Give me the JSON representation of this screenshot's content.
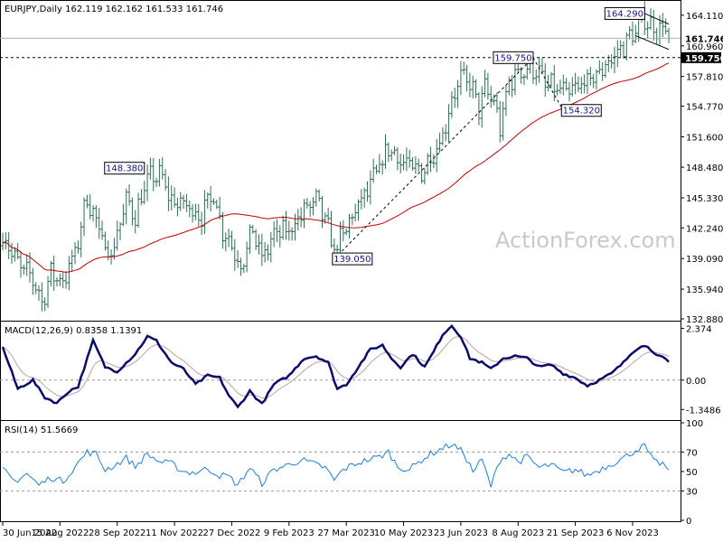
{
  "chart_data": {
    "type": "candlestick-ohlc",
    "watermark": "ActionForex.com",
    "price_panel": {
      "header": "EURJPY,Daily  162.119 162.162 161.533 161.746",
      "ylim": [
        132.88,
        165.4
      ],
      "yticks": [
        132.88,
        135.94,
        139.09,
        142.24,
        145.33,
        148.48,
        151.6,
        154.77,
        157.81,
        160.96,
        164.11
      ],
      "ytick_labels": [
        "132.880",
        "135.940",
        "139.090",
        "142.240",
        "145.330",
        "148.480",
        "151.600",
        "154.770",
        "157.810",
        "160.960",
        "164.110"
      ],
      "current_price": 161.746,
      "current_price_label": "161.746",
      "level_line": 159.75,
      "level_line_label": "159.750",
      "ma_series_color": "#c00000",
      "bar_color": "#2f6f57",
      "annotations": [
        {
          "label": "164.290",
          "x_index": 213,
          "value": 164.29,
          "side": "left"
        },
        {
          "label": "159.750",
          "x_index": 176,
          "value": 159.75,
          "side": "left"
        },
        {
          "label": "154.320",
          "x_index": 186,
          "value": 154.32,
          "side": "right"
        },
        {
          "label": "148.380",
          "x_index": 47,
          "value": 148.38,
          "side": "left"
        },
        {
          "label": "139.050",
          "x_index": 110,
          "value": 139.05,
          "side": "right"
        }
      ],
      "trend_lines": [
        {
          "from": [
            110,
            139.05
          ],
          "to": [
            176,
            159.75
          ],
          "style": "dashed"
        },
        {
          "from": [
            176,
            159.75
          ],
          "to": [
            186,
            154.32
          ],
          "style": "dashed"
        },
        {
          "from": [
            213,
            164.29
          ],
          "to": [
            221,
            163.2
          ],
          "style": "solid"
        },
        {
          "from": [
            210,
            162.0
          ],
          "to": [
            221,
            160.6
          ],
          "style": "solid"
        }
      ],
      "keypoints": [
        [
          0,
          141.5
        ],
        [
          5,
          138.5
        ],
        [
          10,
          137.0
        ],
        [
          13,
          134.6
        ],
        [
          16,
          137.5
        ],
        [
          20,
          136.8
        ],
        [
          24,
          139.5
        ],
        [
          28,
          145.5
        ],
        [
          33,
          141.0
        ],
        [
          36,
          139.5
        ],
        [
          41,
          145.0
        ],
        [
          44,
          143.5
        ],
        [
          48,
          147.2
        ],
        [
          52,
          147.8
        ],
        [
          56,
          145.0
        ],
        [
          61,
          144.5
        ],
        [
          66,
          143.5
        ],
        [
          70,
          145.8
        ],
        [
          73,
          142.0
        ],
        [
          76,
          140.5
        ],
        [
          79,
          138.3
        ],
        [
          83,
          142.0
        ],
        [
          86,
          139.0
        ],
        [
          90,
          141.5
        ],
        [
          95,
          142.0
        ],
        [
          100,
          144.0
        ],
        [
          104,
          145.0
        ],
        [
          107,
          143.0
        ],
        [
          110,
          140.0
        ],
        [
          113,
          141.5
        ],
        [
          117,
          144.0
        ],
        [
          121,
          146.0
        ],
        [
          125,
          148.5
        ],
        [
          128,
          150.5
        ],
        [
          131,
          149.5
        ],
        [
          135,
          148.5
        ],
        [
          139,
          148.0
        ],
        [
          142,
          149.5
        ],
        [
          146,
          151.8
        ],
        [
          149,
          155.5
        ],
        [
          152,
          157.6
        ],
        [
          155,
          157.2
        ],
        [
          158,
          154.5
        ],
        [
          160,
          156.5
        ],
        [
          163,
          155.2
        ],
        [
          165,
          152.5
        ],
        [
          168,
          157.2
        ],
        [
          171,
          158.3
        ],
        [
          174,
          158.5
        ],
        [
          177,
          158.6
        ],
        [
          180,
          157.0
        ],
        [
          184,
          156.5
        ],
        [
          188,
          156.0
        ],
        [
          192,
          157.0
        ],
        [
          196,
          157.6
        ],
        [
          200,
          159.0
        ],
        [
          204,
          160.2
        ],
        [
          207,
          161.5
        ],
        [
          210,
          162.5
        ],
        [
          213,
          163.8
        ],
        [
          216,
          162.8
        ],
        [
          219,
          163.0
        ],
        [
          221,
          161.746
        ]
      ]
    },
    "macd_panel": {
      "header": "MACD(12,26,9) 0.8358 1.1391",
      "ylim": [
        -1.75,
        2.6
      ],
      "yticks": [
        2.374,
        0.0,
        -1.3486
      ],
      "ytick_labels": [
        "2.374",
        "0.00",
        "-1.3486"
      ],
      "macd_color": "#0b0b6b",
      "signal_color": "#c0a0a0",
      "keypoints": [
        [
          0,
          1.5
        ],
        [
          5,
          -0.4
        ],
        [
          10,
          0.0
        ],
        [
          14,
          -0.8
        ],
        [
          18,
          -1.05
        ],
        [
          22,
          -0.5
        ],
        [
          25,
          -0.3
        ],
        [
          30,
          1.8
        ],
        [
          34,
          0.6
        ],
        [
          38,
          0.4
        ],
        [
          44,
          1.2
        ],
        [
          48,
          2.0
        ],
        [
          51,
          1.8
        ],
        [
          56,
          0.8
        ],
        [
          60,
          0.5
        ],
        [
          64,
          -0.2
        ],
        [
          68,
          0.2
        ],
        [
          72,
          0.1
        ],
        [
          75,
          -0.7
        ],
        [
          78,
          -1.25
        ],
        [
          82,
          -0.5
        ],
        [
          86,
          -1.1
        ],
        [
          90,
          -0.2
        ],
        [
          95,
          0.2
        ],
        [
          100,
          1.0
        ],
        [
          104,
          1.1
        ],
        [
          108,
          0.8
        ],
        [
          111,
          -0.4
        ],
        [
          114,
          -0.2
        ],
        [
          118,
          0.6
        ],
        [
          122,
          1.4
        ],
        [
          126,
          1.6
        ],
        [
          129,
          1.0
        ],
        [
          132,
          0.6
        ],
        [
          136,
          1.2
        ],
        [
          140,
          0.6
        ],
        [
          143,
          1.3
        ],
        [
          146,
          2.1
        ],
        [
          149,
          2.5
        ],
        [
          152,
          2.0
        ],
        [
          155,
          1.0
        ],
        [
          159,
          0.8
        ],
        [
          162,
          0.5
        ],
        [
          166,
          1.0
        ],
        [
          170,
          1.1
        ],
        [
          174,
          1.0
        ],
        [
          178,
          0.6
        ],
        [
          182,
          0.7
        ],
        [
          186,
          0.3
        ],
        [
          190,
          0.1
        ],
        [
          194,
          -0.25
        ],
        [
          198,
          0.0
        ],
        [
          202,
          0.3
        ],
        [
          206,
          0.8
        ],
        [
          209,
          1.3
        ],
        [
          212,
          1.6
        ],
        [
          214,
          1.5
        ],
        [
          218,
          1.1
        ],
        [
          221,
          0.8358
        ]
      ]
    },
    "rsi_panel": {
      "header": "RSI(14) 51.5669",
      "ylim": [
        0,
        100
      ],
      "yticks": [
        100,
        70,
        50,
        30,
        0
      ],
      "ytick_labels": [
        "100",
        "70",
        "50",
        "30",
        "0"
      ],
      "dashed_levels": [
        70,
        30
      ],
      "rsi_color": "#1e7fd8",
      "keypoints": [
        [
          0,
          52
        ],
        [
          4,
          40
        ],
        [
          8,
          48
        ],
        [
          12,
          36
        ],
        [
          16,
          44
        ],
        [
          20,
          40
        ],
        [
          24,
          55
        ],
        [
          28,
          70
        ],
        [
          31,
          68
        ],
        [
          34,
          52
        ],
        [
          37,
          56
        ],
        [
          41,
          64
        ],
        [
          44,
          55
        ],
        [
          48,
          68
        ],
        [
          52,
          60
        ],
        [
          56,
          58
        ],
        [
          60,
          50
        ],
        [
          64,
          49
        ],
        [
          68,
          53
        ],
        [
          72,
          46
        ],
        [
          75,
          45
        ],
        [
          78,
          36
        ],
        [
          82,
          54
        ],
        [
          86,
          38
        ],
        [
          90,
          52
        ],
        [
          94,
          56
        ],
        [
          99,
          62
        ],
        [
          103,
          58
        ],
        [
          107,
          54
        ],
        [
          110,
          41
        ],
        [
          113,
          52
        ],
        [
          117,
          58
        ],
        [
          121,
          62
        ],
        [
          125,
          65
        ],
        [
          128,
          70
        ],
        [
          131,
          55
        ],
        [
          135,
          52
        ],
        [
          139,
          62
        ],
        [
          142,
          68
        ],
        [
          146,
          74
        ],
        [
          149,
          78
        ],
        [
          153,
          69
        ],
        [
          156,
          50
        ],
        [
          159,
          62
        ],
        [
          162,
          35
        ],
        [
          165,
          62
        ],
        [
          168,
          68
        ],
        [
          171,
          60
        ],
        [
          174,
          65
        ],
        [
          178,
          54
        ],
        [
          182,
          57
        ],
        [
          186,
          49
        ],
        [
          190,
          52
        ],
        [
          194,
          46
        ],
        [
          198,
          52
        ],
        [
          202,
          58
        ],
        [
          206,
          64
        ],
        [
          210,
          72
        ],
        [
          213,
          76
        ],
        [
          216,
          60
        ],
        [
          219,
          58
        ],
        [
          221,
          51.5669
        ]
      ]
    },
    "x_axis": {
      "bar_count": 222,
      "tick_labels": [
        "30 Jun 2022",
        "15 Aug 2022",
        "28 Sep 2022",
        "11 Nov 2022",
        "27 Dec 2022",
        "9 Feb 2023",
        "27 Mar 2023",
        "10 May 2023",
        "23 Jun 2023",
        "8 Aug 2023",
        "21 Sep 2023",
        "6 Nov 2023"
      ],
      "tick_indices": [
        0,
        19,
        38,
        57,
        76,
        95,
        114,
        133,
        152,
        171,
        190,
        209
      ]
    }
  }
}
